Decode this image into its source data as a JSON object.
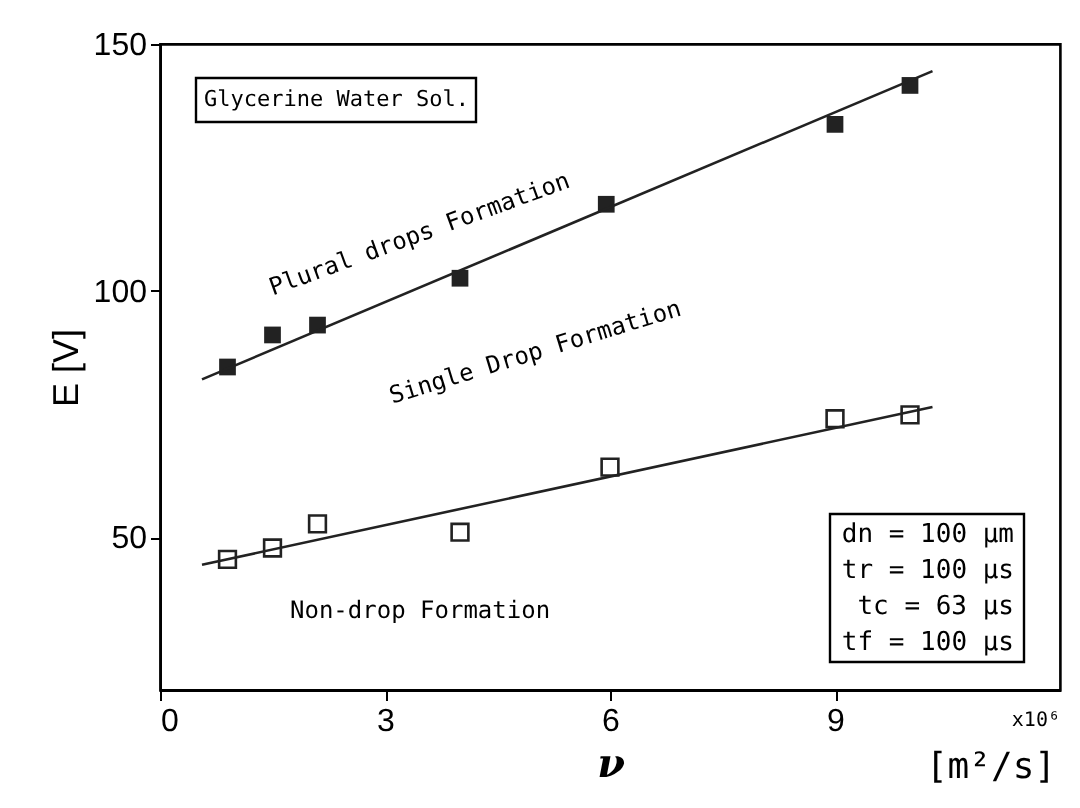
{
  "chart_data": {
    "type": "scatter",
    "xlabel": "ν",
    "ylabel": "E [V]",
    "xlim": [
      0,
      12
    ],
    "xticks": [
      0,
      3,
      6,
      9
    ],
    "ylim": [
      19,
      150
    ],
    "yticks": [
      50,
      100,
      150
    ],
    "grid": false,
    "series": [
      {
        "color": "#222222",
        "marker": "square",
        "x": [
          0.9,
          1.5,
          2.1,
          4.0,
          5.95,
          9.0,
          10.0
        ],
        "values": [
          84.5,
          91,
          93,
          102.5,
          117.5,
          133.7,
          141.6
        ]
      },
      {
        "color": "#222222",
        "marker": "square",
        "x": [
          0.9,
          1.5,
          2.1,
          4.0,
          6.0,
          9.0,
          10.0
        ],
        "values": [
          45.5,
          47.8,
          52.7,
          51,
          64.2,
          74,
          74.8
        ]
      },
      {
        "type": "line",
        "marker": "none",
        "color": "#222222",
        "x": [
          0.56,
          10.3
        ],
        "values": [
          82,
          144.5
        ]
      },
      {
        "type": "line",
        "marker": "none",
        "color": "#222222",
        "x": [
          0.56,
          10.3
        ],
        "values": [
          44.4,
          76.4
        ]
      }
    ],
    "annotations": [
      "Glycerine Water Sol.",
      "Plural drops Formation",
      "Single Drop Formation",
      "Non-drop Formation",
      "dn = 100 μm",
      "tr = 100 μs",
      "tc =  63 μs",
      "tf = 100 μs",
      "x10⁶",
      "[m²/s]"
    ]
  }
}
